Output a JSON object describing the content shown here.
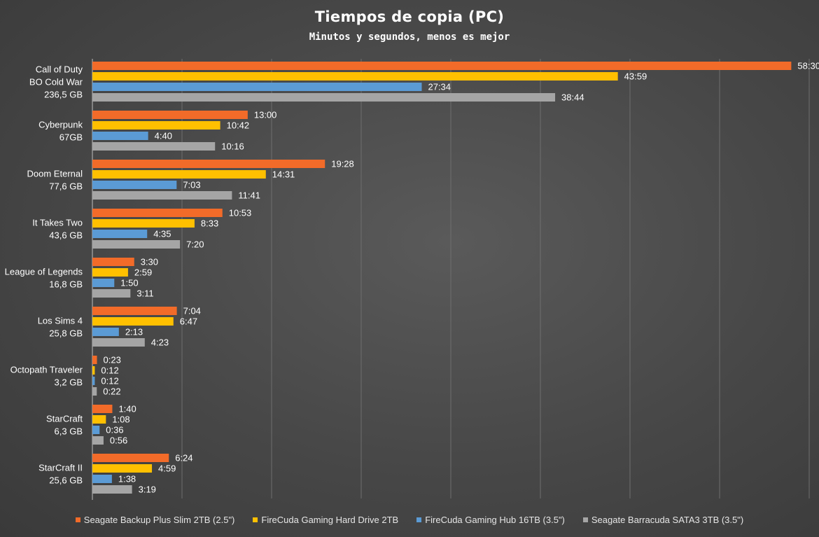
{
  "chart_data": {
    "type": "bar",
    "orientation": "horizontal",
    "title": "Tiempos de copia (PC)",
    "subtitle": "Minutos y segundos, menos es mejor",
    "xlim": [
      0,
      60
    ],
    "grid": true,
    "legend_position": "bottom",
    "categories": [
      [
        "Call of Duty",
        "BO Cold War",
        "236,5 GB"
      ],
      [
        "Cyberpunk",
        "67GB"
      ],
      [
        "Doom Eternal",
        "77,6 GB"
      ],
      [
        "It Takes Two",
        "43,6 GB"
      ],
      [
        "League of Legends",
        "16,8 GB"
      ],
      [
        "Los Sims 4",
        "25,8 GB"
      ],
      [
        "Octopath Traveler",
        "3,2 GB"
      ],
      [
        "StarCraft",
        "6,3 GB"
      ],
      [
        "StarCraft II",
        "25,6 GB"
      ]
    ],
    "series": [
      {
        "name": "Seagate Backup Plus Slim 2TB (2.5\")",
        "color": "#f26b29",
        "labels": [
          "58:30",
          "13:00",
          "19:28",
          "10:53",
          "3:30",
          "7:04",
          "0:23",
          "1:40",
          "6:24"
        ],
        "values": [
          58.5,
          13.0,
          19.467,
          10.883,
          3.5,
          7.067,
          0.383,
          1.667,
          6.4
        ]
      },
      {
        "name": "FireCuda Gaming Hard Drive 2TB",
        "color": "#ffc000",
        "labels": [
          "43:59",
          "10:42",
          "14:31",
          "8:33",
          "2:59",
          "6:47",
          "0:12",
          "1:08",
          "4:59"
        ],
        "values": [
          43.983,
          10.7,
          14.517,
          8.55,
          2.983,
          6.783,
          0.2,
          1.133,
          4.983
        ]
      },
      {
        "name": "FireCuda Gaming Hub 16TB (3.5\")",
        "color": "#5b9bd5",
        "labels": [
          "27:34",
          "4:40",
          "7:03",
          "4:35",
          "1:50",
          "2:13",
          "0:12",
          "0:36",
          "1:38"
        ],
        "values": [
          27.567,
          4.667,
          7.05,
          4.583,
          1.833,
          2.217,
          0.2,
          0.6,
          1.633
        ]
      },
      {
        "name": "Seagate Barracuda SATA3 3TB (3.5\")",
        "color": "#a5a5a5",
        "labels": [
          "38:44",
          "10:16",
          "11:41",
          "7:20",
          "3:11",
          "4:23",
          "0:22",
          "0:56",
          "3:19"
        ],
        "values": [
          38.733,
          10.267,
          11.683,
          7.333,
          3.183,
          4.383,
          0.367,
          0.933,
          3.317
        ]
      }
    ]
  }
}
